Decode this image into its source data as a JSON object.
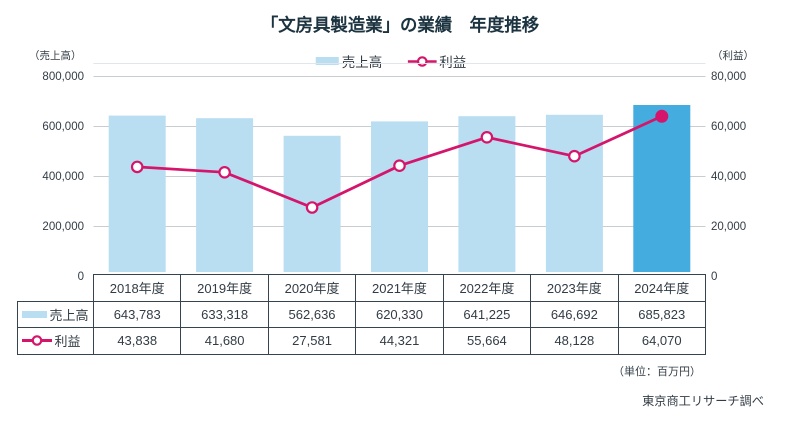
{
  "title": "「文房具製造業」の業績　年度推移",
  "legend": {
    "sales_label": "売上高",
    "profit_label": "利益"
  },
  "left_axis_unit": "（売上高）",
  "right_axis_unit": "（利益）",
  "unit_note": "（単位：百万円）",
  "source_note": "東京商工リサーチ調べ",
  "colors": {
    "bar": "#b9def2",
    "bar_highlight": "#45acdf",
    "line": "#d5156b",
    "marker_fill": "#ffffff",
    "grid": "#c9cdd0",
    "plot_border": "#dfe7ec",
    "table_border": "#36444f",
    "text": "#333c45",
    "title_text": "#1c3340"
  },
  "chart_data": {
    "type": "bar",
    "subtype": "combo bar+line, dual axis",
    "title": "「文房具製造業」の業績　年度推移",
    "categories": [
      "2018年度",
      "2019年度",
      "2020年度",
      "2021年度",
      "2022年度",
      "2023年度",
      "2024年度"
    ],
    "series": [
      {
        "name": "売上高",
        "type": "bar",
        "axis": "left",
        "values": [
          643783,
          633318,
          562636,
          620330,
          641225,
          646692,
          685823
        ]
      },
      {
        "name": "利益",
        "type": "line",
        "axis": "right",
        "values": [
          43838,
          41680,
          27581,
          44321,
          55664,
          48128,
          64070
        ]
      }
    ],
    "left_axis": {
      "label": "（売上高）",
      "min": 0,
      "max": 800000,
      "tick_interval": 200000,
      "tick_labels": [
        "0",
        "200,000",
        "400,000",
        "600,000",
        "800,000"
      ]
    },
    "right_axis": {
      "label": "（利益）",
      "min": 0,
      "max": 80000,
      "tick_interval": 20000,
      "tick_labels": [
        "0",
        "20,000",
        "40,000",
        "60,000",
        "80,000"
      ]
    },
    "highlight_last_category": true,
    "grid": "horizontal gridlines only",
    "legend_position": "top center",
    "unit": "百万円"
  },
  "table": {
    "header": [
      "2018年度",
      "2019年度",
      "2020年度",
      "2021年度",
      "2022年度",
      "2023年度",
      "2024年度"
    ],
    "rows": [
      {
        "label": "売上高",
        "values": [
          "643,783",
          "633,318",
          "562,636",
          "620,330",
          "641,225",
          "646,692",
          "685,823"
        ]
      },
      {
        "label": "利益",
        "values": [
          "43,838",
          "41,680",
          "27,581",
          "44,321",
          "55,664",
          "48,128",
          "64,070"
        ]
      }
    ]
  }
}
